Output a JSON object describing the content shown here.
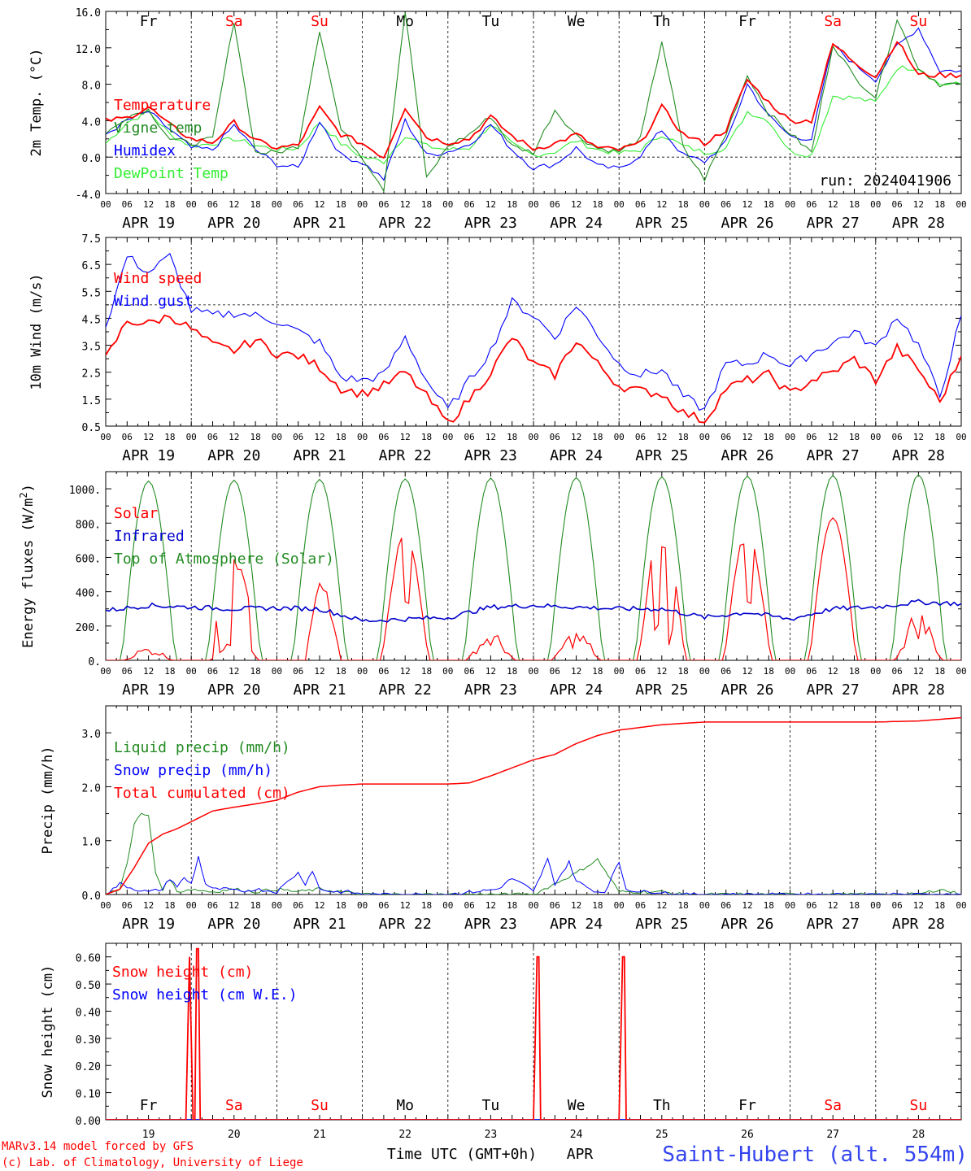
{
  "colors": {
    "red": "#ff0000",
    "green": "#228b22",
    "blue": "#0000ff",
    "lightgreen": "#33ee33",
    "darkblue": "#0000cc",
    "weekend": "#ff0000"
  },
  "days": [
    {
      "date": "APR 19",
      "num": "19",
      "dow": "Fr"
    },
    {
      "date": "APR 20",
      "num": "20",
      "dow": "Sa"
    },
    {
      "date": "APR 21",
      "num": "21",
      "dow": "Su"
    },
    {
      "date": "APR 22",
      "num": "22",
      "dow": "Mo"
    },
    {
      "date": "APR 23",
      "num": "23",
      "dow": "Tu"
    },
    {
      "date": "APR 24",
      "num": "24",
      "dow": "We"
    },
    {
      "date": "APR 25",
      "num": "25",
      "dow": "Th"
    },
    {
      "date": "APR 26",
      "num": "26",
      "dow": "Fr"
    },
    {
      "date": "APR 27",
      "num": "27",
      "dow": "Sa"
    },
    {
      "date": "APR 28",
      "num": "28",
      "dow": "Su"
    }
  ],
  "hour_labels": [
    "00",
    "06",
    "12",
    "18"
  ],
  "run": "run: 2024041906",
  "footer": {
    "model": "MARv3.14 model forced by GFS",
    "lab": "(c) Lab. of Climatology, University of Liege",
    "axis": "Time UTC (GMT+0h)",
    "month": "APR",
    "station": "Saint-Hubert (alt. 554m)"
  },
  "chart_data": [
    {
      "type": "line",
      "ylabel": "2m Temp. (°C)",
      "ylim": [
        -4,
        16
      ],
      "yticks": [
        {
          "v": -4,
          "label": "-4.0"
        },
        {
          "v": 0,
          "label": "0.0"
        },
        {
          "v": 4,
          "label": "4.0"
        },
        {
          "v": 8,
          "label": "8.0"
        },
        {
          "v": 12,
          "label": "12.0"
        },
        {
          "v": 16,
          "label": "16.0"
        }
      ],
      "refline": 0,
      "x_hours": [
        0,
        6,
        12,
        18,
        24,
        30,
        36,
        42,
        48,
        54,
        60,
        66,
        72,
        78,
        84,
        90,
        96,
        102,
        108,
        114,
        120,
        126,
        132,
        138,
        144,
        150,
        156,
        162,
        168,
        174,
        180,
        186,
        192,
        198,
        204,
        210,
        216,
        222,
        228,
        234,
        240
      ],
      "series": [
        {
          "name": "Temperature",
          "color": "red",
          "values": [
            4.0,
            4.3,
            5.5,
            3.5,
            2.0,
            1.6,
            3.8,
            1.8,
            1.0,
            1.3,
            5.4,
            2.5,
            1.5,
            0.0,
            5.5,
            2.2,
            1.6,
            2.0,
            4.4,
            2.3,
            0.9,
            1.5,
            2.5,
            1.0,
            0.8,
            1.5,
            5.5,
            2.5,
            1.5,
            3.0,
            8.5,
            6.0,
            4.0,
            4.0,
            12.4,
            10.5,
            8.8,
            12.8,
            9.0,
            9.0,
            9.0
          ]
        },
        {
          "name": "Vigne temp",
          "color": "green",
          "values": [
            2.5,
            4.5,
            5.2,
            2.0,
            1.5,
            2.0,
            15.0,
            0.5,
            0.5,
            1.2,
            14.0,
            3.0,
            0.0,
            -3.5,
            16.0,
            -2.4,
            1.2,
            2.5,
            4.5,
            1.2,
            0.5,
            5.2,
            2.4,
            1.0,
            0.6,
            2.0,
            12.8,
            1.0,
            -2.4,
            2.5,
            9.0,
            4.8,
            2.6,
            0.5,
            12.4,
            8.8,
            6.6,
            15.2,
            9.8,
            8.0,
            8.0
          ]
        },
        {
          "name": "Humidex",
          "color": "blue",
          "values": [
            2.5,
            4.0,
            5.0,
            3.0,
            1.0,
            0.8,
            3.5,
            0.8,
            -0.8,
            -1.2,
            4.0,
            0.2,
            -0.6,
            -2.4,
            4.0,
            0.2,
            0.6,
            1.4,
            3.6,
            0.8,
            -1.2,
            -0.8,
            1.0,
            -1.0,
            -1.3,
            0.2,
            3.0,
            0.2,
            -0.5,
            1.6,
            8.0,
            4.5,
            2.3,
            2.0,
            12.4,
            10.2,
            8.5,
            12.2,
            14.2,
            9.5,
            9.5
          ]
        },
        {
          "name": "DewPoint Temp",
          "color": "lightgreen",
          "values": [
            1.5,
            3.8,
            5.0,
            2.5,
            1.2,
            1.5,
            2.0,
            1.3,
            0.8,
            1.0,
            3.8,
            1.5,
            0.0,
            -0.5,
            2.4,
            1.2,
            0.8,
            1.0,
            3.6,
            1.4,
            0.2,
            0.6,
            1.8,
            0.8,
            0.4,
            0.8,
            2.5,
            1.2,
            0.5,
            1.0,
            5.0,
            4.0,
            0.6,
            0.2,
            6.7,
            6.5,
            6.0,
            9.8,
            9.8,
            8.0,
            8.0
          ]
        }
      ]
    },
    {
      "type": "line",
      "ylabel": "10m Wind (m/s)",
      "ylim": [
        0.5,
        7.5
      ],
      "yticks": [
        {
          "v": 0.5,
          "label": "0.5"
        },
        {
          "v": 1.5,
          "label": "1.5"
        },
        {
          "v": 2.5,
          "label": "2.5"
        },
        {
          "v": 3.5,
          "label": "3.5"
        },
        {
          "v": 4.5,
          "label": "4.5"
        },
        {
          "v": 5.5,
          "label": "5.5"
        },
        {
          "v": 6.5,
          "label": "6.5"
        },
        {
          "v": 7.5,
          "label": "7.5"
        }
      ],
      "refline": 5.0,
      "x_hours": [
        0,
        6,
        12,
        18,
        24,
        30,
        36,
        42,
        48,
        54,
        60,
        66,
        72,
        78,
        84,
        90,
        96,
        102,
        108,
        114,
        120,
        126,
        132,
        138,
        144,
        150,
        156,
        162,
        168,
        174,
        180,
        186,
        192,
        198,
        204,
        210,
        216,
        222,
        228,
        234,
        240
      ],
      "series": [
        {
          "name": "Wind speed",
          "color": "red",
          "values": [
            3.0,
            4.4,
            4.3,
            4.6,
            4.1,
            3.5,
            3.3,
            3.7,
            3.2,
            3.1,
            2.7,
            1.9,
            1.7,
            2.0,
            2.5,
            1.6,
            0.6,
            1.5,
            2.5,
            3.8,
            2.8,
            2.4,
            3.7,
            2.8,
            2.0,
            1.8,
            1.7,
            1.0,
            0.7,
            1.9,
            2.2,
            2.4,
            1.7,
            2.2,
            2.5,
            3.0,
            2.2,
            3.4,
            2.6,
            1.4,
            3.1
          ]
        },
        {
          "name": "Wind gust",
          "color": "blue",
          "values": [
            4.2,
            6.8,
            6.2,
            6.8,
            4.8,
            4.6,
            4.7,
            4.6,
            4.4,
            4.0,
            3.6,
            2.3,
            2.2,
            2.4,
            3.8,
            2.2,
            1.1,
            2.2,
            3.3,
            5.1,
            4.6,
            3.8,
            5.0,
            3.9,
            2.8,
            2.4,
            2.6,
            1.6,
            1.1,
            2.8,
            2.8,
            3.2,
            2.7,
            3.2,
            3.6,
            4.0,
            3.4,
            4.6,
            3.5,
            1.6,
            4.6
          ]
        }
      ]
    },
    {
      "type": "line",
      "ylabel": "Energy fluxes (W/m2)",
      "ylim": [
        0,
        1100
      ],
      "yticks": [
        {
          "v": 0,
          "label": "0."
        },
        {
          "v": 200,
          "label": "200."
        },
        {
          "v": 400,
          "label": "400."
        },
        {
          "v": 600,
          "label": "600."
        },
        {
          "v": 800,
          "label": "800."
        },
        {
          "v": 1000,
          "label": "1000."
        }
      ],
      "solar_daily": [
        {
          "peak": 80,
          "shape": "low"
        },
        {
          "peak": 650,
          "shape": "spiky"
        },
        {
          "peak": 520,
          "shape": "late"
        },
        {
          "peak": 760,
          "shape": "double"
        },
        {
          "peak": 170,
          "shape": "low"
        },
        {
          "peak": 180,
          "shape": "low"
        },
        {
          "peak": 820,
          "shape": "spiky"
        },
        {
          "peak": 760,
          "shape": "double"
        },
        {
          "peak": 830,
          "shape": "smooth"
        },
        {
          "peak": 300,
          "shape": "low"
        }
      ],
      "toa_daily_peak": [
        1045,
        1050,
        1055,
        1058,
        1062,
        1066,
        1070,
        1074,
        1078,
        1082
      ],
      "infrared": {
        "x_hours": [
          0,
          12,
          24,
          36,
          48,
          60,
          72,
          84,
          96,
          108,
          120,
          132,
          144,
          156,
          168,
          180,
          192,
          204,
          216,
          228,
          240
        ],
        "values": [
          290,
          320,
          310,
          300,
          305,
          300,
          230,
          240,
          250,
          310,
          320,
          310,
          300,
          300,
          250,
          280,
          240,
          300,
          310,
          340,
          330
        ]
      },
      "series": [
        {
          "name": "Solar",
          "color": "red"
        },
        {
          "name": "Infrared",
          "color": "darkblue"
        },
        {
          "name": "Top of Atmosphere (Solar)",
          "color": "green"
        }
      ]
    },
    {
      "type": "line",
      "ylabel": "Precip (mm/h)",
      "ylim": [
        0,
        3.5
      ],
      "yticks": [
        {
          "v": 0,
          "label": "0.0"
        },
        {
          "v": 1,
          "label": "1.0"
        },
        {
          "v": 2,
          "label": "2.0"
        },
        {
          "v": 3,
          "label": "3.0"
        }
      ],
      "series": [
        {
          "name": "Liquid precip (mm/h)",
          "color": "green",
          "x_hours": [
            0,
            4,
            6,
            8,
            10,
            12,
            14,
            16,
            18,
            20,
            24,
            30,
            36,
            42,
            48,
            54,
            60,
            66,
            72,
            120,
            126,
            132,
            138,
            144,
            150,
            156,
            162,
            168,
            216,
            228,
            234,
            240
          ],
          "values": [
            0,
            0.1,
            0.6,
            1.3,
            1.5,
            1.45,
            0.4,
            0.1,
            0.3,
            0.05,
            0.1,
            0.05,
            0.1,
            0.05,
            0.1,
            0.05,
            0.1,
            0.05,
            0,
            0,
            0.2,
            0.4,
            0.65,
            0.05,
            0.05,
            0.05,
            0,
            0,
            0,
            0,
            0.1,
            0
          ]
        },
        {
          "name": "Snow precip (mm/h)",
          "color": "blue",
          "x_hours": [
            0,
            4,
            8,
            12,
            16,
            18,
            20,
            22,
            24,
            26,
            28,
            30,
            34,
            38,
            42,
            48,
            52,
            54,
            56,
            58,
            60,
            64,
            68,
            72,
            96,
            110,
            114,
            118,
            120,
            124,
            126,
            130,
            132,
            136,
            138,
            140,
            144,
            146,
            150,
            156,
            160,
            168,
            240
          ],
          "values": [
            0,
            0.2,
            0.1,
            0.05,
            0.1,
            0.3,
            0.15,
            0.3,
            0.2,
            0.7,
            0.2,
            0.1,
            0.1,
            0.05,
            0.1,
            0.05,
            0.3,
            0.4,
            0.2,
            0.45,
            0.1,
            0.05,
            0.05,
            0,
            0,
            0.1,
            0.3,
            0.15,
            0.05,
            0.65,
            0.2,
            0.6,
            0.25,
            0.1,
            0.05,
            0.05,
            0.6,
            0.1,
            0.05,
            0.05,
            0,
            0,
            0
          ]
        },
        {
          "name": "Total cumulated (cm)",
          "color": "red",
          "x_hours": [
            0,
            4,
            8,
            12,
            16,
            20,
            24,
            30,
            36,
            42,
            48,
            54,
            60,
            66,
            72,
            96,
            102,
            108,
            114,
            120,
            126,
            132,
            138,
            144,
            156,
            168,
            192,
            216,
            228,
            240
          ],
          "values": [
            0,
            0.1,
            0.5,
            0.95,
            1.12,
            1.22,
            1.35,
            1.55,
            1.62,
            1.68,
            1.75,
            1.9,
            2.0,
            2.03,
            2.05,
            2.05,
            2.07,
            2.2,
            2.35,
            2.5,
            2.6,
            2.8,
            2.95,
            3.05,
            3.15,
            3.2,
            3.2,
            3.2,
            3.22,
            3.28
          ]
        }
      ]
    },
    {
      "type": "line",
      "ylabel": "Snow height (cm)",
      "ylim": [
        0,
        0.65
      ],
      "yticks": [
        {
          "v": 0,
          "label": "0.00"
        },
        {
          "v": 0.1,
          "label": "0.10"
        },
        {
          "v": 0.2,
          "label": "0.20"
        },
        {
          "v": 0.3,
          "label": "0.30"
        },
        {
          "v": 0.4,
          "label": "0.40"
        },
        {
          "v": 0.5,
          "label": "0.50"
        },
        {
          "v": 0.6,
          "label": "0.60"
        }
      ],
      "series": [
        {
          "name": "Snow height (cm)",
          "color": "red",
          "x_hours": [
            0,
            22.5,
            23.5,
            24.5,
            25,
            25.5,
            26,
            26.5,
            27.5,
            120,
            121,
            121.5,
            122,
            144,
            145,
            145.5,
            146,
            240
          ],
          "values": [
            0,
            0,
            0.6,
            0,
            0,
            0.63,
            0.63,
            0,
            0,
            0,
            0.6,
            0.6,
            0,
            0,
            0.6,
            0.6,
            0,
            0
          ]
        },
        {
          "name": "Snow height (cm W.E.)",
          "color": "blue",
          "x_hours": [
            0,
            240
          ],
          "values": [
            0,
            0
          ]
        }
      ]
    }
  ]
}
